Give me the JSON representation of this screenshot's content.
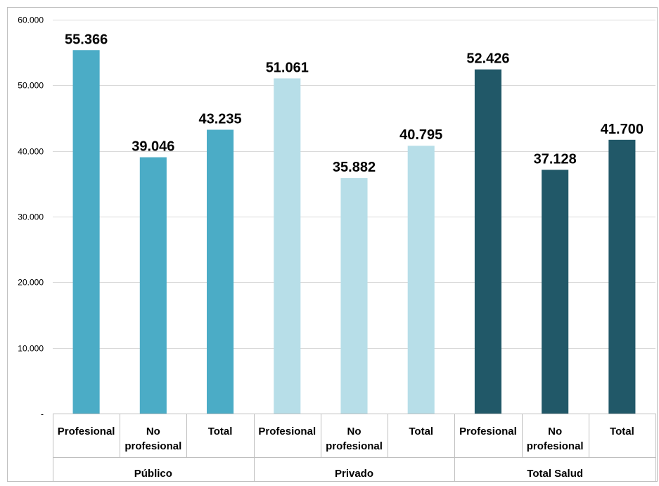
{
  "chart_data": {
    "type": "bar",
    "groups": [
      {
        "name": "Público",
        "color": "#4BACC6",
        "categories": [
          "Profesional",
          "No profesional",
          "Total"
        ],
        "values": [
          55366,
          39046,
          43235
        ],
        "value_labels": [
          "55.366",
          "39.046",
          "43.235"
        ]
      },
      {
        "name": "Privado",
        "color": "#B7DEE8",
        "categories": [
          "Profesional",
          "No profesional",
          "Total"
        ],
        "values": [
          51061,
          35882,
          40795
        ],
        "value_labels": [
          "51.061",
          "35.882",
          "40.795"
        ]
      },
      {
        "name": "Total Salud",
        "color": "#215868",
        "categories": [
          "Profesional",
          "No profesional",
          "Total"
        ],
        "values": [
          52426,
          37128,
          41700
        ],
        "value_labels": [
          "52.426",
          "37.128",
          "41.700"
        ]
      }
    ],
    "category_lines": {
      "Profesional": [
        "Profesional"
      ],
      "No profesional": [
        "No",
        "profesional"
      ],
      "Total": [
        "Total"
      ]
    },
    "ylim": [
      0,
      60000
    ],
    "yticks": [
      0,
      10000,
      20000,
      30000,
      40000,
      50000,
      60000
    ],
    "ytick_labels": [
      "-",
      "10.000",
      "20.000",
      "30.000",
      "40.000",
      "50.000",
      "60.000"
    ],
    "grid": true,
    "title": "",
    "xlabel": "",
    "ylabel": ""
  }
}
